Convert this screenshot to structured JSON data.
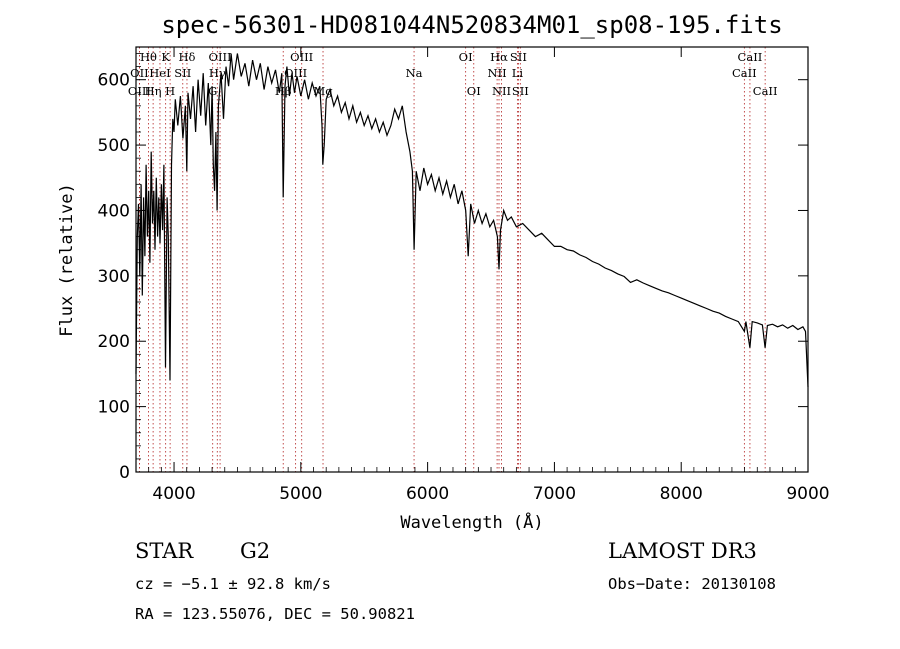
{
  "chart_data": {
    "type": "line",
    "title": "spec-56301-HD081044N520834M01_sp08-195.fits",
    "xlabel": "Wavelength (Å)",
    "ylabel": "Flux (relative)",
    "xlim": [
      3700,
      9000
    ],
    "ylim": [
      0,
      650
    ],
    "x_ticks": [
      4000,
      5000,
      6000,
      7000,
      8000,
      9000
    ],
    "y_ticks": [
      0,
      100,
      200,
      300,
      400,
      500,
      600
    ],
    "series": [
      {
        "name": "spectrum",
        "points": [
          [
            3700,
            150
          ],
          [
            3710,
            360
          ],
          [
            3720,
            410
          ],
          [
            3730,
            300
          ],
          [
            3740,
            440
          ],
          [
            3750,
            270
          ],
          [
            3760,
            420
          ],
          [
            3770,
            330
          ],
          [
            3780,
            470
          ],
          [
            3790,
            360
          ],
          [
            3800,
            430
          ],
          [
            3810,
            320
          ],
          [
            3820,
            490
          ],
          [
            3830,
            380
          ],
          [
            3840,
            430
          ],
          [
            3850,
            340
          ],
          [
            3860,
            450
          ],
          [
            3870,
            360
          ],
          [
            3880,
            420
          ],
          [
            3889,
            350
          ],
          [
            3900,
            440
          ],
          [
            3910,
            370
          ],
          [
            3920,
            470
          ],
          [
            3933,
            160
          ],
          [
            3945,
            420
          ],
          [
            3955,
            360
          ],
          [
            3968,
            140
          ],
          [
            3980,
            470
          ],
          [
            3990,
            540
          ],
          [
            4000,
            520
          ],
          [
            4010,
            570
          ],
          [
            4030,
            530
          ],
          [
            4050,
            575
          ],
          [
            4070,
            510
          ],
          [
            4090,
            560
          ],
          [
            4101,
            460
          ],
          [
            4110,
            580
          ],
          [
            4130,
            540
          ],
          [
            4150,
            590
          ],
          [
            4170,
            520
          ],
          [
            4190,
            600
          ],
          [
            4210,
            545
          ],
          [
            4230,
            610
          ],
          [
            4250,
            530
          ],
          [
            4270,
            595
          ],
          [
            4290,
            500
          ],
          [
            4300,
            590
          ],
          [
            4310,
            470
          ],
          [
            4320,
            430
          ],
          [
            4330,
            520
          ],
          [
            4340,
            400
          ],
          [
            4350,
            560
          ],
          [
            4370,
            610
          ],
          [
            4390,
            540
          ],
          [
            4410,
            620
          ],
          [
            4430,
            590
          ],
          [
            4450,
            640
          ],
          [
            4470,
            600
          ],
          [
            4500,
            640
          ],
          [
            4530,
            605
          ],
          [
            4560,
            625
          ],
          [
            4590,
            590
          ],
          [
            4620,
            630
          ],
          [
            4650,
            600
          ],
          [
            4680,
            625
          ],
          [
            4710,
            585
          ],
          [
            4740,
            620
          ],
          [
            4770,
            595
          ],
          [
            4800,
            615
          ],
          [
            4830,
            580
          ],
          [
            4850,
            610
          ],
          [
            4861,
            420
          ],
          [
            4875,
            590
          ],
          [
            4890,
            620
          ],
          [
            4910,
            575
          ],
          [
            4930,
            610
          ],
          [
            4950,
            580
          ],
          [
            4970,
            605
          ],
          [
            5000,
            575
          ],
          [
            5030,
            600
          ],
          [
            5060,
            570
          ],
          [
            5090,
            595
          ],
          [
            5120,
            575
          ],
          [
            5150,
            590
          ],
          [
            5167,
            530
          ],
          [
            5173,
            470
          ],
          [
            5184,
            500
          ],
          [
            5200,
            570
          ],
          [
            5230,
            585
          ],
          [
            5260,
            560
          ],
          [
            5290,
            575
          ],
          [
            5320,
            550
          ],
          [
            5350,
            565
          ],
          [
            5380,
            540
          ],
          [
            5410,
            560
          ],
          [
            5440,
            535
          ],
          [
            5470,
            550
          ],
          [
            5500,
            530
          ],
          [
            5530,
            545
          ],
          [
            5560,
            525
          ],
          [
            5590,
            540
          ],
          [
            5620,
            520
          ],
          [
            5650,
            535
          ],
          [
            5680,
            515
          ],
          [
            5710,
            530
          ],
          [
            5740,
            555
          ],
          [
            5770,
            540
          ],
          [
            5800,
            560
          ],
          [
            5830,
            520
          ],
          [
            5860,
            490
          ],
          [
            5880,
            460
          ],
          [
            5893,
            340
          ],
          [
            5910,
            460
          ],
          [
            5940,
            430
          ],
          [
            5970,
            465
          ],
          [
            6000,
            440
          ],
          [
            6030,
            455
          ],
          [
            6060,
            430
          ],
          [
            6090,
            450
          ],
          [
            6120,
            425
          ],
          [
            6150,
            445
          ],
          [
            6180,
            420
          ],
          [
            6210,
            440
          ],
          [
            6240,
            410
          ],
          [
            6270,
            430
          ],
          [
            6300,
            400
          ],
          [
            6320,
            330
          ],
          [
            6340,
            410
          ],
          [
            6370,
            380
          ],
          [
            6400,
            400
          ],
          [
            6430,
            380
          ],
          [
            6460,
            395
          ],
          [
            6490,
            375
          ],
          [
            6520,
            385
          ],
          [
            6550,
            360
          ],
          [
            6563,
            310
          ],
          [
            6575,
            370
          ],
          [
            6600,
            400
          ],
          [
            6630,
            385
          ],
          [
            6660,
            390
          ],
          [
            6700,
            375
          ],
          [
            6750,
            380
          ],
          [
            6800,
            370
          ],
          [
            6850,
            360
          ],
          [
            6900,
            365
          ],
          [
            6950,
            355
          ],
          [
            7000,
            345
          ],
          [
            7050,
            345
          ],
          [
            7100,
            340
          ],
          [
            7150,
            338
          ],
          [
            7200,
            332
          ],
          [
            7250,
            328
          ],
          [
            7300,
            322
          ],
          [
            7350,
            318
          ],
          [
            7400,
            312
          ],
          [
            7450,
            308
          ],
          [
            7500,
            303
          ],
          [
            7550,
            299
          ],
          [
            7600,
            290
          ],
          [
            7650,
            294
          ],
          [
            7700,
            289
          ],
          [
            7750,
            285
          ],
          [
            7800,
            281
          ],
          [
            7850,
            277
          ],
          [
            7900,
            274
          ],
          [
            7950,
            270
          ],
          [
            8000,
            266
          ],
          [
            8050,
            262
          ],
          [
            8100,
            258
          ],
          [
            8150,
            254
          ],
          [
            8200,
            250
          ],
          [
            8250,
            246
          ],
          [
            8300,
            243
          ],
          [
            8350,
            238
          ],
          [
            8400,
            234
          ],
          [
            8450,
            230
          ],
          [
            8498,
            215
          ],
          [
            8510,
            230
          ],
          [
            8542,
            190
          ],
          [
            8560,
            230
          ],
          [
            8600,
            228
          ],
          [
            8640,
            225
          ],
          [
            8662,
            190
          ],
          [
            8680,
            224
          ],
          [
            8720,
            226
          ],
          [
            8760,
            222
          ],
          [
            8800,
            225
          ],
          [
            8840,
            220
          ],
          [
            8880,
            224
          ],
          [
            8920,
            218
          ],
          [
            8960,
            222
          ],
          [
            8980,
            215
          ],
          [
            9000,
            130
          ]
        ]
      }
    ],
    "lines": [
      {
        "name": "Hθ",
        "wavelength": 3798,
        "row": 1
      },
      {
        "name": "OII",
        "wavelength": 3727,
        "row": 2
      },
      {
        "name": "OIII",
        "wavelength": 3727,
        "row": 3
      },
      {
        "name": "Hη",
        "wavelength": 3835,
        "row": 3
      },
      {
        "name": "K",
        "wavelength": 3934,
        "row": 1
      },
      {
        "name": "HeI",
        "wavelength": 3889,
        "row": 2
      },
      {
        "name": "SII",
        "wavelength": 4069,
        "row": 2
      },
      {
        "name": "H",
        "wavelength": 3969,
        "row": 3
      },
      {
        "name": "Hδ",
        "wavelength": 4102,
        "row": 1
      },
      {
        "name": "OIII",
        "wavelength": 4363,
        "row": 1
      },
      {
        "name": "Hγ",
        "wavelength": 4341,
        "row": 2
      },
      {
        "name": "G",
        "wavelength": 4305,
        "row": 3
      },
      {
        "name": "OIII",
        "wavelength": 5007,
        "row": 1
      },
      {
        "name": "OIII",
        "wavelength": 4959,
        "row": 2
      },
      {
        "name": "Hβ",
        "wavelength": 4861,
        "row": 3
      },
      {
        "name": "Mg",
        "wavelength": 5175,
        "row": 3
      },
      {
        "name": "Na",
        "wavelength": 5893,
        "row": 2
      },
      {
        "name": "OI",
        "wavelength": 6300,
        "row": 1
      },
      {
        "name": "OI",
        "wavelength": 6364,
        "row": 3
      },
      {
        "name": "Hα",
        "wavelength": 6563,
        "row": 1
      },
      {
        "name": "SII",
        "wavelength": 6716,
        "row": 1
      },
      {
        "name": "NII",
        "wavelength": 6548,
        "row": 2
      },
      {
        "name": "Li",
        "wavelength": 6708,
        "row": 2
      },
      {
        "name": "NII",
        "wavelength": 6583,
        "row": 3
      },
      {
        "name": "SII",
        "wavelength": 6731,
        "row": 3
      },
      {
        "name": "CaII",
        "wavelength": 8542,
        "row": 1
      },
      {
        "name": "CaII",
        "wavelength": 8498,
        "row": 2
      },
      {
        "name": "CaII",
        "wavelength": 8662,
        "row": 3
      }
    ]
  },
  "info": {
    "class": "STAR",
    "subclass": "G2",
    "survey": "LAMOST DR3",
    "cz": "cz = −5.1 ± 92.8 km/s",
    "obs_date": "Obs−Date: 20130108",
    "coords": "RA = 123.55076, DEC =  50.90821"
  },
  "colors": {
    "spectrum": "#000000",
    "line_markers": "#b22222",
    "axes": "#000000",
    "background": "#ffffff"
  }
}
